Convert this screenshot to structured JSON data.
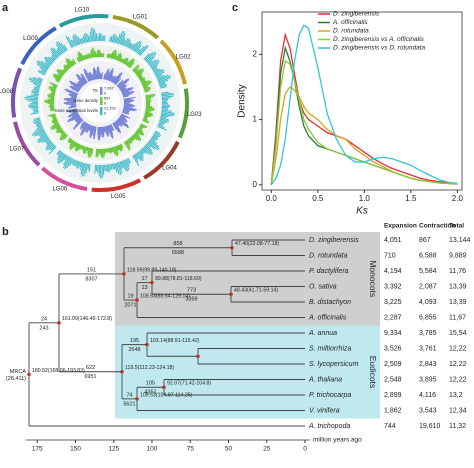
{
  "panels": [
    "a",
    "b",
    "c"
  ],
  "circos": {
    "chromosomes": [
      "LG01",
      "LG02",
      "LG03",
      "LG04",
      "LG05",
      "LG06",
      "LG07",
      "LG08",
      "LG09",
      "LG10"
    ],
    "colors": [
      "#9a9a2a",
      "#c8a020",
      "#5a9e3a",
      "#9a3a2a",
      "#d0302a",
      "#d0509a",
      "#9a4aa0",
      "#7a50b0",
      "#3a60c0",
      "#2a9aa0"
    ],
    "tracks": [
      {
        "name": "TE",
        "max": "7,092",
        "min": "0",
        "color": "#7a86d8"
      },
      {
        "name": "Gene density",
        "max": "657",
        "min": "0",
        "color": "#6ac83a"
      },
      {
        "name": "Gene expression levels",
        "max": "21,153",
        "min": "0",
        "color": "#3ab8c8"
      }
    ]
  },
  "chart_data": {
    "type": "line",
    "x_label": "Ks",
    "y_label": "Density",
    "x": [
      0,
      0.05,
      0.1,
      0.15,
      0.2,
      0.25,
      0.3,
      0.35,
      0.4,
      0.5,
      0.6,
      0.7,
      0.8,
      0.9,
      1.0,
      1.1,
      1.2,
      1.3,
      1.4,
      1.5,
      1.6,
      1.7,
      1.8,
      1.9,
      2.0
    ],
    "series": [
      {
        "name": "D. zingiberensis",
        "color": "#e8312f",
        "values": [
          0,
          0.8,
          1.9,
          2.3,
          2.1,
          1.7,
          1.3,
          1.1,
          1.0,
          0.9,
          0.8,
          0.75,
          0.7,
          0.6,
          0.5,
          0.4,
          0.32,
          0.25,
          0.2,
          0.15,
          0.1,
          0.07,
          0.05,
          0.03,
          0.02
        ]
      },
      {
        "name": "A. officinalis",
        "color": "#2e7d32",
        "values": [
          0,
          0.7,
          1.7,
          2.1,
          1.9,
          1.6,
          1.2,
          0.9,
          0.75,
          0.6,
          0.55,
          0.5,
          0.45,
          0.4,
          0.35,
          0.3,
          0.25,
          0.2,
          0.15,
          0.1,
          0.07,
          0.05,
          0.03,
          0.02,
          0.01
        ]
      },
      {
        "name": "D. rotundata",
        "color": "#d6a21e",
        "values": [
          0,
          0.4,
          1.0,
          1.4,
          1.5,
          1.45,
          1.35,
          1.2,
          1.1,
          1.0,
          0.85,
          0.75,
          0.7,
          0.55,
          0.45,
          0.35,
          0.28,
          0.2,
          0.15,
          0.1,
          0.07,
          0.05,
          0.03,
          0.02,
          0.01
        ]
      },
      {
        "name": "D. zingiberensis vs A. officinalis",
        "color": "#8dc63f",
        "values": [
          0,
          0.6,
          1.5,
          1.9,
          1.85,
          1.6,
          1.3,
          1.0,
          0.85,
          0.65,
          0.55,
          0.5,
          0.45,
          0.4,
          0.35,
          0.3,
          0.25,
          0.2,
          0.15,
          0.1,
          0.07,
          0.05,
          0.03,
          0.02,
          0.01
        ]
      },
      {
        "name": "D. zingiberensis vs D. rotundata",
        "color": "#33c6d6",
        "values": [
          0,
          0.1,
          0.3,
          0.7,
          1.3,
          1.9,
          2.3,
          2.45,
          2.4,
          1.8,
          1.1,
          0.7,
          0.45,
          0.35,
          0.35,
          0.4,
          0.42,
          0.4,
          0.35,
          0.3,
          0.22,
          0.15,
          0.08,
          0.04,
          0.02
        ]
      }
    ],
    "xlim": [
      -0.1,
      2.05
    ],
    "ylim": [
      -0.08,
      2.65
    ],
    "xticks": [
      {
        "value": 0,
        "label": "0.0"
      },
      0.5,
      {
        "value": 1,
        "label": "1.0"
      },
      1.5,
      {
        "value": 2,
        "label": "2.0"
      }
    ],
    "yticks": [
      0,
      1,
      2
    ]
  },
  "tree": {
    "leaves": [
      "D. zingiberensis",
      "D. rotundata",
      "P. dactylifera",
      "O. sativa",
      "B. distachyon",
      "A. officinalis",
      "A. annua",
      "S. miltiorrhiza",
      "S. lycopersicum",
      "A. thaliana",
      "P. trichocarpa",
      "V. vinifera",
      "A. trichopoda"
    ],
    "nodes": [
      "47.40(22.08-77.18)",
      "118.59(99.89-140.18)",
      "99.88(78.81-118.69)",
      "48.43(41.71-59.14)",
      "109.53(89.54-129.14)",
      "161.09(146.46-172.8)",
      "103.14(88.91-115.42)",
      "119.5(112.23-124.18)",
      "92.07(71.42-104.8)",
      "109.53(104.97-114.25)",
      "180.52(168.06-193.83)"
    ],
    "branches": [
      {
        "gain": 858,
        "loss": 6588
      },
      {
        "gain": 151,
        "loss": 8307
      },
      {
        "gain": 17,
        "loss": 13
      },
      {
        "gain": 19,
        "loss": 2071
      },
      {
        "gain": 773,
        "loss": 3359
      },
      {
        "gain": 24,
        "loss": 243
      },
      {
        "gain": 195,
        "loss": 2648
      },
      {
        "gain": 105,
        "loss": 4351
      },
      {
        "gain": 622,
        "loss": 6951
      },
      {
        "gain": 74,
        "loss": 5621
      }
    ],
    "root": [
      "MRCA",
      "(28,411)"
    ],
    "clades": [
      "Monocots",
      "Eudicots"
    ],
    "axis": {
      "ticks": [
        175,
        150,
        125,
        100,
        75,
        50,
        25,
        0
      ],
      "label": "million years ago"
    }
  },
  "table": {
    "header": [
      "Expansion",
      "Contraction",
      "Total"
    ],
    "rows": [
      [
        "4,051",
        "867",
        "13,144"
      ],
      [
        "710",
        "6,588",
        "9,889"
      ],
      [
        "4,194",
        "5,584",
        "11,76"
      ],
      [
        "3,392",
        "2,087",
        "13,39"
      ],
      [
        "3,225",
        "4,093",
        "13,39"
      ],
      [
        "2,287",
        "6,855",
        "11,67"
      ],
      [
        "9,334",
        "3,785",
        "15,54"
      ],
      [
        "3,526",
        "3,761",
        "12,22"
      ],
      [
        "2,509",
        "2,843",
        "12,22"
      ],
      [
        "2,548",
        "3,895",
        "12,22"
      ],
      [
        "2,899",
        "4,116",
        "13,2"
      ],
      [
        "1,862",
        "3,543",
        "12,34"
      ],
      [
        "744",
        "19,610",
        "11,32"
      ]
    ]
  }
}
